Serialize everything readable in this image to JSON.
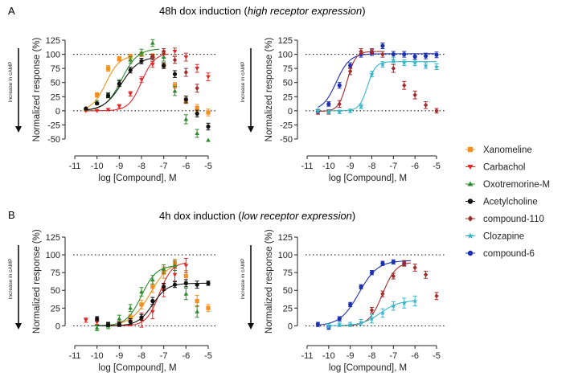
{
  "figure": {
    "panel_a": "A",
    "panel_b": "B",
    "legend": [
      {
        "name": "Xanomeline",
        "color": "#f5901e",
        "marker": "square"
      },
      {
        "name": "Carbachol",
        "color": "#e02a2a",
        "marker": "triangle-down"
      },
      {
        "name": "Oxotremorine-M",
        "color": "#2e8b2e",
        "marker": "triangle-up"
      },
      {
        "name": "Acetylcholine",
        "color": "#111111",
        "marker": "circle"
      },
      {
        "name": "compound-110",
        "color": "#a52a2a",
        "marker": "diamond"
      },
      {
        "name": "Clozapine",
        "color": "#38b5c8",
        "marker": "star"
      },
      {
        "name": "compound-6",
        "color": "#1c2fb0",
        "marker": "circle"
      }
    ]
  },
  "rows": [
    {
      "title_prefix": "48h dox induction (",
      "title_italic": "high receptor expression",
      "title_suffix": ")"
    },
    {
      "title_prefix": "4h dox induction (",
      "title_italic": "low receptor expression",
      "title_suffix": ")"
    }
  ],
  "chart_data": [
    {
      "type": "scatter",
      "panel": "A-left",
      "xlabel": "log [Compound], M",
      "ylabel": "Normalized response (%)",
      "cue_label": "Increase in cAMP",
      "xlim": [
        -11,
        -5
      ],
      "ylim": [
        -60,
        125
      ],
      "xticks": [
        -11,
        -10,
        -9,
        -8,
        -7,
        -6,
        -5
      ],
      "yticks": [
        125,
        100,
        75,
        50,
        25,
        0,
        -25,
        -50
      ],
      "reference_lines": [
        100,
        0
      ],
      "series": [
        {
          "name": "Xanomeline",
          "x": [
            -10.5,
            -10,
            -9.5,
            -9,
            -8.5,
            -8,
            -7.5,
            -7,
            -6.5,
            -6,
            -5.5,
            -5
          ],
          "y": [
            2,
            28,
            75,
            92,
            96,
            100,
            97,
            80,
            45,
            18,
            5,
            -3
          ],
          "err": [
            0,
            4,
            5,
            4,
            4,
            4,
            4,
            5,
            5,
            5,
            6,
            6
          ],
          "fit": {
            "bottom": 0,
            "top": 98,
            "ec50": -9.6,
            "hill": 1.4,
            "xrange": [
              -10.5,
              -8.5
            ]
          }
        },
        {
          "name": "Carbachol",
          "x": [
            -10.5,
            -10,
            -9.5,
            -9,
            -8.5,
            -8,
            -7.5,
            -7,
            -6.5,
            -6,
            -5.5,
            -5
          ],
          "y": [
            0,
            0,
            2,
            8,
            30,
            55,
            82,
            100,
            105,
            95,
            75,
            60
          ],
          "err": [
            0,
            0,
            0,
            3,
            4,
            5,
            5,
            6,
            6,
            7,
            7,
            7
          ],
          "fit": {
            "bottom": 0,
            "top": 102,
            "ec50": -8.0,
            "hill": 1.5,
            "xrange": [
              -10.5,
              -6.8
            ]
          }
        },
        {
          "name": "Oxotremorine-M",
          "x": [
            -10.5,
            -10,
            -9.5,
            -9,
            -8.5,
            -8,
            -7.5,
            -7,
            -6.5,
            -6,
            -5.5,
            -5
          ],
          "y": [
            3,
            15,
            28,
            50,
            90,
            103,
            120,
            95,
            35,
            -15,
            -40,
            -52
          ],
          "err": [
            0,
            3,
            4,
            5,
            6,
            6,
            6,
            7,
            8,
            8,
            7,
            0
          ],
          "fit": {
            "bottom": 0,
            "top": 110,
            "ec50": -8.9,
            "hill": 1.2,
            "xrange": [
              -10.5,
              -7.2
            ]
          }
        },
        {
          "name": "Acetylcholine",
          "x": [
            -10.5,
            -10,
            -9.5,
            -9,
            -8.5,
            -8,
            -7.5,
            -7,
            -6.5,
            -6,
            -5.5,
            -5
          ],
          "y": [
            4,
            13,
            27,
            48,
            72,
            88,
            95,
            80,
            65,
            20,
            -5,
            -28
          ],
          "err": [
            0,
            2,
            4,
            5,
            5,
            5,
            5,
            5,
            6,
            6,
            6,
            6
          ],
          "fit": {
            "bottom": 0,
            "top": 96,
            "ec50": -8.9,
            "hill": 1.1,
            "xrange": [
              -10.5,
              -7.5
            ]
          }
        },
        {
          "name": "compound-110",
          "x": [
            -7.5,
            -7,
            -6.5,
            -6,
            -5.5
          ],
          "y": [
            95,
            105,
            90,
            68,
            40
          ],
          "err": [
            5,
            5,
            6,
            7,
            7
          ],
          "fit": null
        }
      ]
    },
    {
      "type": "scatter",
      "panel": "A-right",
      "xlabel": "log [Compound], M",
      "ylabel": "Normalized response (%)",
      "cue_label": "Increase in cAMP",
      "xlim": [
        -11,
        -5
      ],
      "ylim": [
        -60,
        125
      ],
      "xticks": [
        -11,
        -10,
        -9,
        -8,
        -7,
        -6,
        -5
      ],
      "yticks": [
        125,
        100,
        75,
        50,
        25,
        0,
        -25,
        -50
      ],
      "reference_lines": [
        100,
        0
      ],
      "series": [
        {
          "name": "compound-6",
          "x": [
            -10.5,
            -10,
            -9.5,
            -9,
            -8.5,
            -8,
            -7.5,
            -7,
            -6.5,
            -6,
            -5.5,
            -5
          ],
          "y": [
            -2,
            12,
            45,
            80,
            100,
            103,
            115,
            100,
            100,
            96,
            97,
            99
          ],
          "err": [
            4,
            4,
            5,
            5,
            5,
            5,
            5,
            5,
            5,
            5,
            5,
            5
          ],
          "fit": {
            "bottom": 0,
            "top": 101,
            "ec50": -9.65,
            "hill": 1.4,
            "xrange": [
              -10.5,
              -5
            ]
          }
        },
        {
          "name": "compound-110",
          "x": [
            -10.5,
            -10,
            -9.5,
            -9,
            -8.5,
            -8,
            -7.5,
            -7,
            -6.5,
            -6,
            -5.5,
            -5
          ],
          "y": [
            -2,
            -2,
            12,
            70,
            105,
            105,
            100,
            75,
            45,
            28,
            10,
            0
          ],
          "err": [
            4,
            4,
            6,
            6,
            5,
            5,
            5,
            7,
            7,
            7,
            6,
            4
          ],
          "fit": {
            "bottom": -1,
            "top": 105,
            "ec50": -9.15,
            "hill": 2.2,
            "xrange": [
              -10.5,
              -7.5
            ]
          }
        },
        {
          "name": "Clozapine",
          "x": [
            -10.5,
            -10,
            -9.5,
            -9,
            -8.5,
            -8,
            -7.5,
            -7,
            -6.5,
            -6,
            -5.5,
            -5
          ],
          "y": [
            0,
            -2,
            -2,
            0,
            8,
            65,
            82,
            90,
            85,
            85,
            80,
            78
          ],
          "err": [
            3,
            3,
            3,
            3,
            4,
            5,
            5,
            5,
            5,
            5,
            5,
            5
          ],
          "fit": {
            "bottom": 0,
            "top": 87,
            "ec50": -8.2,
            "hill": 2.3,
            "xrange": [
              -10,
              -5
            ]
          }
        }
      ]
    },
    {
      "type": "scatter",
      "panel": "B-left",
      "xlabel": "log [Compound], M",
      "ylabel": "Normalized response (%)",
      "cue_label": "Increase in cAMP",
      "xlim": [
        -11,
        -5
      ],
      "ylim": [
        -12,
        125
      ],
      "xticks": [
        -11,
        -10,
        -9,
        -8,
        -7,
        -6,
        -5
      ],
      "yticks": [
        125,
        100,
        75,
        50,
        25,
        0
      ],
      "reference_lines": [
        100,
        0
      ],
      "series": [
        {
          "name": "Xanomeline",
          "x": [
            -9,
            -8.5,
            -8,
            -7.5,
            -7,
            -6.5,
            -6,
            -5.5,
            -5
          ],
          "y": [
            3,
            12,
            30,
            55,
            75,
            88,
            70,
            35,
            25
          ],
          "err": [
            3,
            4,
            6,
            8,
            8,
            6,
            8,
            8,
            5
          ],
          "fit": {
            "bottom": 0,
            "top": 92,
            "ec50": -7.6,
            "hill": 1.0,
            "xrange": [
              -9.5,
              -6.5
            ]
          }
        },
        {
          "name": "Carbachol",
          "x": [
            -10.5,
            -10,
            -9.5,
            -9,
            -8.5,
            -8,
            -7.5,
            -7,
            -6.5,
            -6
          ],
          "y": [
            8,
            5,
            2,
            3,
            5,
            8,
            20,
            50,
            72,
            85
          ],
          "err": [
            3,
            3,
            3,
            3,
            5,
            10,
            10,
            9,
            9,
            10
          ],
          "fit": {
            "bottom": 0,
            "top": 90,
            "ec50": -7.2,
            "hill": 1.5,
            "xrange": [
              -9.5,
              -6
            ]
          }
        },
        {
          "name": "Oxotremorine-M",
          "x": [
            -10,
            -9.5,
            -9,
            -8.5,
            -8,
            -7.5,
            -7,
            -6.5,
            -6,
            -5.5
          ],
          "y": [
            -3,
            0,
            10,
            25,
            48,
            65,
            80,
            85,
            45,
            20
          ],
          "err": [
            4,
            4,
            5,
            5,
            6,
            6,
            6,
            7,
            8,
            8
          ],
          "fit": {
            "bottom": 0,
            "top": 85,
            "ec50": -8.0,
            "hill": 1.3,
            "xrange": [
              -10.2,
              -6.5
            ]
          }
        },
        {
          "name": "Acetylcholine",
          "x": [
            -10,
            -9.5,
            -9,
            -8.5,
            -8,
            -7.5,
            -7,
            -6.5,
            -6,
            -5.5,
            -5
          ],
          "y": [
            10,
            2,
            2,
            6,
            12,
            35,
            55,
            58,
            60,
            58,
            60
          ],
          "err": [
            3,
            3,
            3,
            4,
            4,
            5,
            5,
            4,
            5,
            5,
            3
          ],
          "fit": {
            "bottom": 0,
            "top": 60,
            "ec50": -7.5,
            "hill": 1.3,
            "xrange": [
              -10,
              -5
            ]
          }
        }
      ]
    },
    {
      "type": "scatter",
      "panel": "B-right",
      "xlabel": "log [Compound], M",
      "ylabel": "Normalized response (%)",
      "cue_label": "Increase in cAMP",
      "xlim": [
        -11,
        -5
      ],
      "ylim": [
        -12,
        125
      ],
      "xticks": [
        -11,
        -10,
        -9,
        -8,
        -7,
        -6,
        -5
      ],
      "yticks": [
        125,
        100,
        75,
        50,
        25,
        0
      ],
      "reference_lines": [
        100,
        0
      ],
      "series": [
        {
          "name": "compound-6",
          "x": [
            -10.5,
            -10,
            -9.5,
            -9,
            -8.5,
            -8,
            -7.5,
            -7,
            -6.5
          ],
          "y": [
            2,
            -2,
            10,
            30,
            55,
            75,
            88,
            90,
            88
          ],
          "err": [
            3,
            3,
            3,
            3,
            3,
            3,
            3,
            3,
            3
          ],
          "fit": {
            "bottom": 0,
            "top": 92,
            "ec50": -8.6,
            "hill": 1.0,
            "xrange": [
              -10.5,
              -6.2
            ]
          }
        },
        {
          "name": "compound-110",
          "x": [
            -8,
            -7.5,
            -7,
            -6.5,
            -6,
            -5.5,
            -5
          ],
          "y": [
            22,
            45,
            70,
            88,
            82,
            72,
            42
          ],
          "err": [
            4,
            4,
            4,
            4,
            5,
            5,
            5
          ],
          "fit": {
            "bottom": 0,
            "top": 90,
            "ec50": -7.5,
            "hill": 1.4,
            "xrange": [
              -9.5,
              -6.2
            ]
          }
        },
        {
          "name": "Clozapine",
          "x": [
            -10,
            -9.5,
            -9,
            -8.5,
            -8,
            -7.5,
            -7,
            -6.5,
            -6
          ],
          "y": [
            0,
            2,
            2,
            5,
            10,
            18,
            28,
            32,
            35
          ],
          "err": [
            3,
            3,
            3,
            4,
            6,
            6,
            6,
            7,
            7
          ],
          "fit": {
            "bottom": 0,
            "top": 36,
            "ec50": -7.6,
            "hill": 1.0,
            "xrange": [
              -10,
              -6
            ]
          }
        }
      ]
    }
  ]
}
